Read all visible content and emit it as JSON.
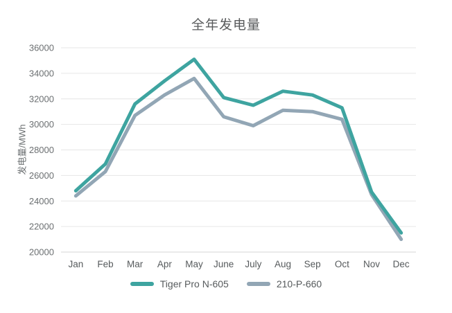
{
  "chart": {
    "title": "全年发电量",
    "ylabel": "发电量/MWh"
  },
  "chart_data": {
    "type": "line",
    "categories": [
      "Jan",
      "Feb",
      "Mar",
      "Apr",
      "May",
      "June",
      "July",
      "Aug",
      "Sep",
      "Oct",
      "Nov",
      "Dec"
    ],
    "series": [
      {
        "name": "Tiger Pro N-605",
        "color": "#3ea4a0",
        "values": [
          24800,
          26900,
          31600,
          33400,
          35100,
          32100,
          31500,
          32600,
          32300,
          31300,
          24700,
          21500
        ]
      },
      {
        "name": "210-P-660",
        "color": "#92a6b5",
        "values": [
          24400,
          26300,
          30700,
          32300,
          33600,
          30600,
          29900,
          31100,
          31000,
          30400,
          24500,
          21000
        ]
      }
    ],
    "title": "全年发电量",
    "xlabel": "",
    "ylabel": "发电量/MWh",
    "ylim": [
      20000,
      36000
    ],
    "ytick_step": 2000,
    "ytick_labels": [
      "20000",
      "22000",
      "24000",
      "26000",
      "28000",
      "30000",
      "32000",
      "34000",
      "36000"
    ],
    "grid": true,
    "legend_position": "bottom",
    "line_width": 5
  },
  "style": {
    "grid_color": "#e6e6e6",
    "axis_line_color": "#d4d4d4",
    "tick_label_color": "#6b6f71",
    "x_label_color": "#565a5c"
  }
}
